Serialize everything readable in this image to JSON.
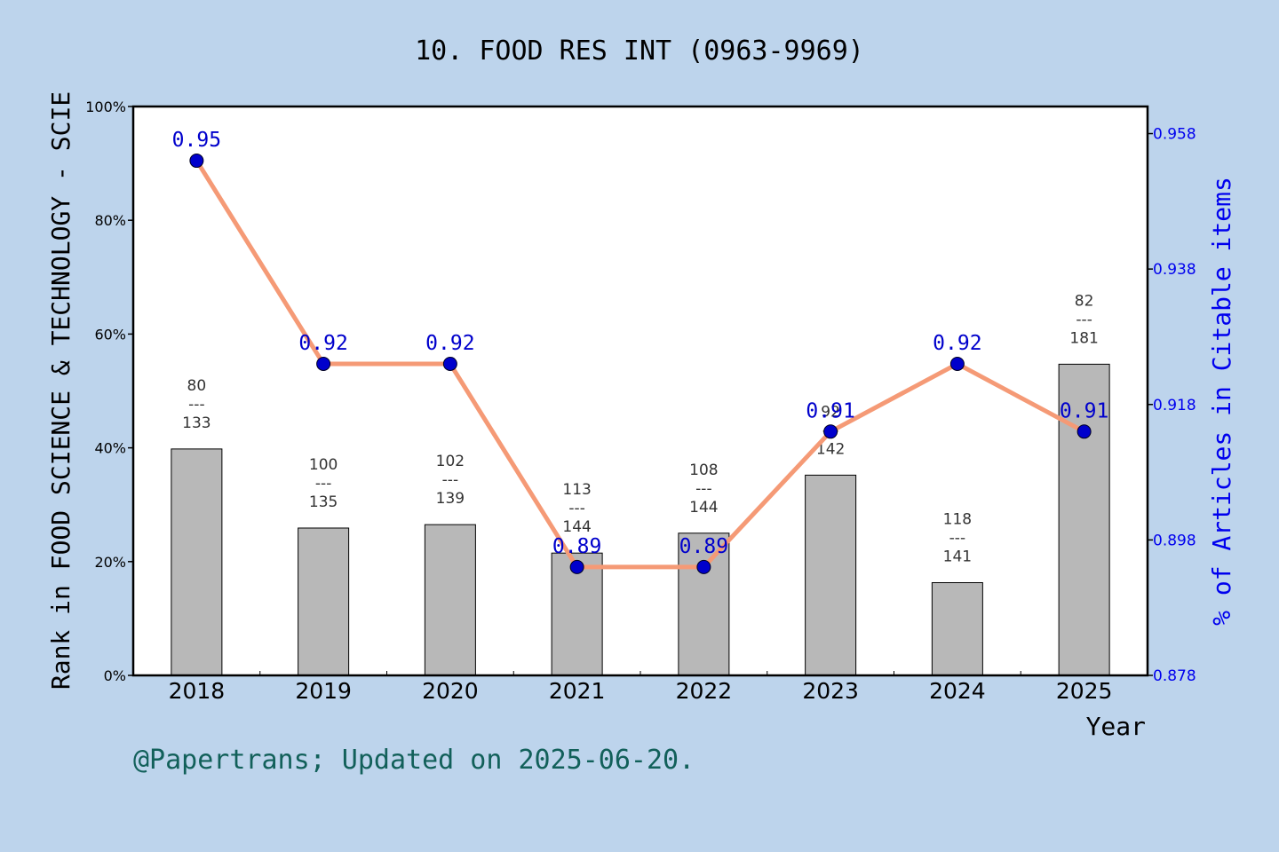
{
  "chart_data": {
    "type": "bar",
    "title": "10. FOOD RES INT (0963-9969)",
    "xlabel": "Year",
    "ylabel": "Rank in FOOD SCIENCE & TECHNOLOGY - SCIE",
    "y2label": "% of Articles in Citable items",
    "categories": [
      "2018",
      "2019",
      "2020",
      "2021",
      "2022",
      "2023",
      "2024",
      "2025"
    ],
    "ylim": [
      0,
      100
    ],
    "yticks": [
      "0%",
      "20%",
      "40%",
      "60%",
      "80%",
      "100%"
    ],
    "y2lim": [
      0.878,
      0.962
    ],
    "y2ticks": [
      0.878,
      0.898,
      0.918,
      0.938,
      0.958
    ],
    "y2tick_labels": [
      "0.878",
      "0.898",
      "0.918",
      "0.938",
      "0.958"
    ],
    "grid": false,
    "series": [
      {
        "kind": "bar",
        "values": [
          39.8,
          25.9,
          26.5,
          21.5,
          25.0,
          35.2,
          16.3,
          54.7
        ],
        "rank": [
          "80",
          "100",
          "102",
          "113",
          "108",
          "92",
          "118",
          "82"
        ],
        "total": [
          "133",
          "135",
          "139",
          "144",
          "144",
          "142",
          "141",
          "181"
        ],
        "separator": "---",
        "color": "#b8b8b8"
      },
      {
        "kind": "line",
        "axis": "right",
        "values": [
          0.954,
          0.924,
          0.924,
          0.894,
          0.894,
          0.914,
          0.924,
          0.914
        ],
        "labels": [
          "0.95",
          "0.92",
          "0.92",
          "0.89",
          "0.89",
          "0.91",
          "0.92",
          "0.91"
        ],
        "color": "#f59a76",
        "marker_color": "#0000cc"
      }
    ]
  },
  "footer": "@Papertrans; Updated on 2025-06-20.",
  "colors": {
    "background": "#bdd4ec",
    "plot_background": "#ffffff",
    "bar": "#b8b8b8",
    "line": "#f59a76",
    "marker": "#0000cc",
    "right_axis": "#0000ee",
    "footer": "#12605a"
  }
}
